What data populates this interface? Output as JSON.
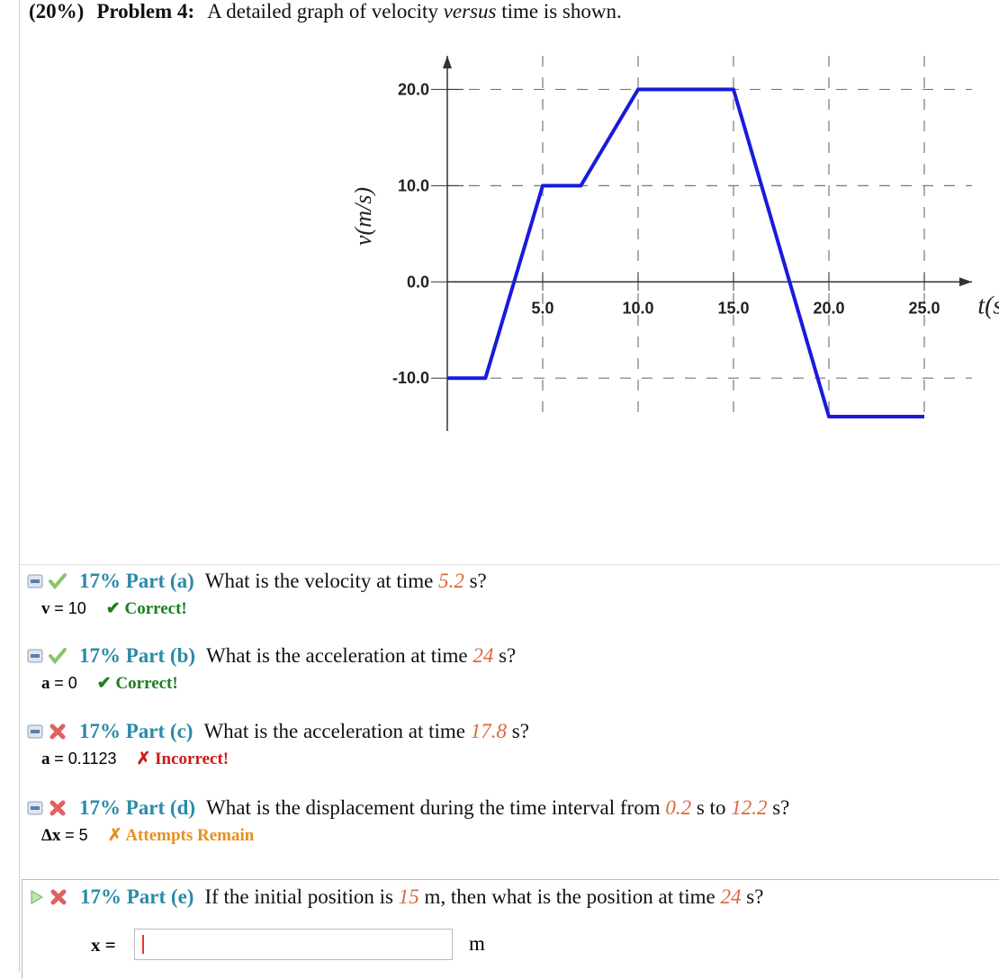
{
  "header": {
    "weight": "(20%)",
    "problem": "Problem 4:",
    "text_before": "A detailed graph of velocity ",
    "text_italic": "versus",
    "text_after": " time is shown."
  },
  "chart_data": {
    "type": "line",
    "x_label": "t(s)",
    "y_label": "v(m/s)",
    "x": [
      0,
      2,
      5,
      7,
      10,
      15,
      20,
      25
    ],
    "series": [
      {
        "name": "velocity",
        "color": "#1a1adb",
        "values": [
          -10,
          -10,
          10,
          10,
          20,
          20,
          -14,
          -14
        ]
      }
    ],
    "xlim": [
      0,
      27.5
    ],
    "ylim": [
      -15.5,
      23.5
    ],
    "xticks": [
      {
        "value": 5,
        "label": "5.0"
      },
      {
        "value": 10,
        "label": "10.0"
      },
      {
        "value": 15,
        "label": "15.0"
      },
      {
        "value": 20,
        "label": "20.0"
      },
      {
        "value": 25,
        "label": "25.0"
      }
    ],
    "yticks": [
      {
        "value": -10,
        "label": "-10.0"
      },
      {
        "value": 0,
        "label": "0.0"
      },
      {
        "value": 10,
        "label": "10.0"
      },
      {
        "value": 20,
        "label": "20.0"
      }
    ],
    "grid": true
  },
  "parts": [
    {
      "title": "17% Part (a)",
      "question": [
        "What is the velocity at time ",
        "5.2",
        " s?"
      ],
      "variable": "v",
      "answer": "= 10",
      "status": "✔ Correct!",
      "status_color": "#1d7f1d",
      "done": true
    },
    {
      "title": "17% Part (b)",
      "question": [
        "What is the acceleration at time ",
        "24",
        " s?"
      ],
      "variable": "a",
      "answer": "= 0",
      "status": "✔ Correct!",
      "status_color": "#1d7f1d",
      "done": true
    },
    {
      "title": "17% Part (c)",
      "question": [
        "What is the acceleration at time ",
        "17.8",
        " s?"
      ],
      "variable": "a",
      "answer": "= 0.1123",
      "status": "✗ Incorrect!",
      "status_color": "#cc1a1a",
      "done": false
    },
    {
      "title": "17% Part (d)",
      "question": [
        "What is the displacement during the time interval from ",
        "0.2",
        " s to ",
        "12.2",
        " s?"
      ],
      "variable": "Δx",
      "answer": "= 5",
      "status": "✗ Attempts Remain",
      "status_color": "#e8901c",
      "done": false
    }
  ],
  "active_part": {
    "title": "17% Part (e)",
    "question": [
      "If the initial position is ",
      "15",
      " m, then what is the position at time ",
      "24",
      " s?"
    ],
    "input_label": "x =",
    "unit": "m"
  }
}
